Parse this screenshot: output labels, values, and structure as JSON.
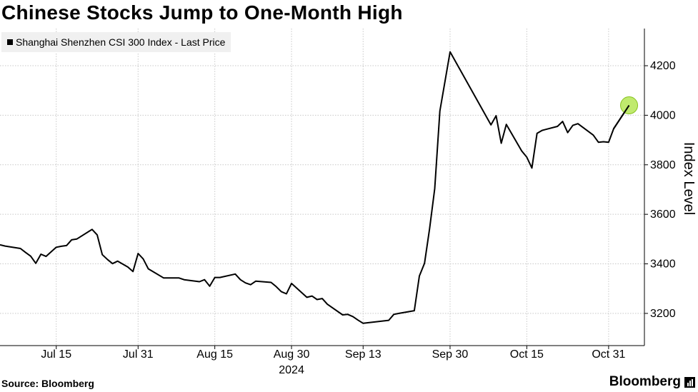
{
  "title": "Chinese Stocks Jump to One-Month High",
  "footer": {
    "source": "Source: Bloomberg",
    "brand": "Bloomberg",
    "brand_icon": "bloomberg-bars-icon"
  },
  "colors": {
    "line": "#000000",
    "highlight": "#b5e655",
    "highlight_stroke": "#86c21e",
    "grid": "#c8c8c8",
    "legend_bg": "#f0f0f0"
  },
  "chart_data": {
    "type": "line",
    "title": "Chinese Stocks Jump to One-Month High",
    "ylabel": "Index Level",
    "xlabel": "",
    "year_label": "2024",
    "ylim": [
      3070,
      4350
    ],
    "xlim": [
      "2024-07-04",
      "2024-11-07"
    ],
    "grid": true,
    "y_axis_side": "right",
    "legend_position": "top-left",
    "yticks": [
      3200,
      3400,
      3600,
      3800,
      4000,
      4200
    ],
    "xticks": [
      {
        "date": "2024-07-15",
        "label": "Jul 15"
      },
      {
        "date": "2024-07-31",
        "label": "Jul 31"
      },
      {
        "date": "2024-08-15",
        "label": "Aug 15"
      },
      {
        "date": "2024-08-30",
        "label": "Aug 30"
      },
      {
        "date": "2024-09-13",
        "label": "Sep 13"
      },
      {
        "date": "2024-09-30",
        "label": "Sep 30"
      },
      {
        "date": "2024-10-15",
        "label": "Oct 15"
      },
      {
        "date": "2024-10-31",
        "label": "Oct 31"
      }
    ],
    "series": [
      {
        "name": "Shanghai Shenzhen CSI 300 Index - Last Price",
        "color": "#000000",
        "points": [
          [
            "2024-07-04",
            3477
          ],
          [
            "2024-07-05",
            3472
          ],
          [
            "2024-07-08",
            3462
          ],
          [
            "2024-07-09",
            3446
          ],
          [
            "2024-07-10",
            3431
          ],
          [
            "2024-07-11",
            3402
          ],
          [
            "2024-07-12",
            3439
          ],
          [
            "2024-07-13",
            3430
          ],
          [
            "2024-07-15",
            3467
          ],
          [
            "2024-07-16",
            3471
          ],
          [
            "2024-07-17",
            3474
          ],
          [
            "2024-07-18",
            3497
          ],
          [
            "2024-07-19",
            3500
          ],
          [
            "2024-07-22",
            3539
          ],
          [
            "2024-07-23",
            3517
          ],
          [
            "2024-07-24",
            3437
          ],
          [
            "2024-07-25",
            3418
          ],
          [
            "2024-07-26",
            3401
          ],
          [
            "2024-07-27",
            3411
          ],
          [
            "2024-07-29",
            3387
          ],
          [
            "2024-07-30",
            3369
          ],
          [
            "2024-07-31",
            3442
          ],
          [
            "2024-08-01",
            3420
          ],
          [
            "2024-08-02",
            3380
          ],
          [
            "2024-08-05",
            3343
          ],
          [
            "2024-08-06",
            3343
          ],
          [
            "2024-08-07",
            3343
          ],
          [
            "2024-08-08",
            3343
          ],
          [
            "2024-08-09",
            3336
          ],
          [
            "2024-08-12",
            3328
          ],
          [
            "2024-08-13",
            3336
          ],
          [
            "2024-08-14",
            3310
          ],
          [
            "2024-08-15",
            3345
          ],
          [
            "2024-08-16",
            3345
          ],
          [
            "2024-08-19",
            3359
          ],
          [
            "2024-08-20",
            3336
          ],
          [
            "2024-08-21",
            3323
          ],
          [
            "2024-08-22",
            3316
          ],
          [
            "2024-08-23",
            3330
          ],
          [
            "2024-08-26",
            3325
          ],
          [
            "2024-08-27",
            3308
          ],
          [
            "2024-08-28",
            3288
          ],
          [
            "2024-08-29",
            3279
          ],
          [
            "2024-08-30",
            3321
          ],
          [
            "2024-09-02",
            3265
          ],
          [
            "2024-09-03",
            3270
          ],
          [
            "2024-09-04",
            3256
          ],
          [
            "2024-09-05",
            3260
          ],
          [
            "2024-09-06",
            3237
          ],
          [
            "2024-09-09",
            3194
          ],
          [
            "2024-09-10",
            3196
          ],
          [
            "2024-09-11",
            3187
          ],
          [
            "2024-09-12",
            3173
          ],
          [
            "2024-09-13",
            3160
          ],
          [
            "2024-09-18",
            3172
          ],
          [
            "2024-09-19",
            3196
          ],
          [
            "2024-09-20",
            3200
          ],
          [
            "2024-09-23",
            3211
          ],
          [
            "2024-09-24",
            3351
          ],
          [
            "2024-09-25",
            3402
          ],
          [
            "2024-09-26",
            3542
          ],
          [
            "2024-09-27",
            3704
          ],
          [
            "2024-09-28",
            4017
          ],
          [
            "2024-09-30",
            4256
          ],
          [
            "2024-10-08",
            3961
          ],
          [
            "2024-10-09",
            3998
          ],
          [
            "2024-10-10",
            3887
          ],
          [
            "2024-10-11",
            3963
          ],
          [
            "2024-10-14",
            3856
          ],
          [
            "2024-10-15",
            3831
          ],
          [
            "2024-10-16",
            3787
          ],
          [
            "2024-10-17",
            3927
          ],
          [
            "2024-10-18",
            3939
          ],
          [
            "2024-10-21",
            3955
          ],
          [
            "2024-10-22",
            3975
          ],
          [
            "2024-10-23",
            3930
          ],
          [
            "2024-10-24",
            3959
          ],
          [
            "2024-10-25",
            3966
          ],
          [
            "2024-10-28",
            3920
          ],
          [
            "2024-10-29",
            3891
          ],
          [
            "2024-10-30",
            3893
          ],
          [
            "2024-10-31",
            3891
          ],
          [
            "2024-11-01",
            3946
          ],
          [
            "2024-11-04",
            4040
          ]
        ]
      }
    ],
    "highlight_point": [
      "2024-11-04",
      4040
    ]
  }
}
